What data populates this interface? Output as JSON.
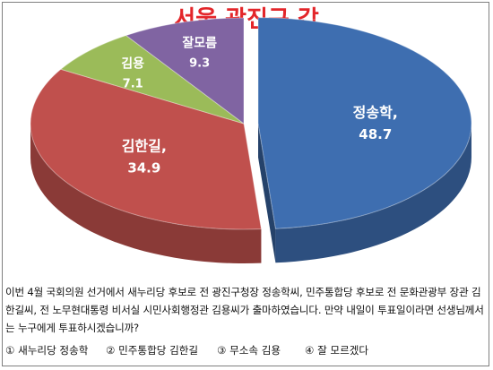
{
  "colors": {
    "title": "#e3262a",
    "slices": [
      "#3e6eb0",
      "#c0504d",
      "#9bbb59",
      "#8064a2"
    ],
    "label_text": "#ffffff"
  },
  "chart_data": {
    "type": "pie",
    "title": "서울 광진구 갑",
    "unit": "%",
    "three_d": true,
    "exploded_slice": "정송학",
    "series": [
      {
        "name": "정송학",
        "value": 48.7,
        "label": "정송학,",
        "value_label": "48.7"
      },
      {
        "name": "김한길",
        "value": 34.9,
        "label": "김한길,",
        "value_label": "34.9"
      },
      {
        "name": "김용",
        "value": 7.1,
        "label": "김용",
        "value_label": "7.1"
      },
      {
        "name": "잘모름",
        "value": 9.3,
        "label": "잘모름",
        "value_label": "9.3"
      }
    ]
  },
  "question": {
    "text": "이번 4월 국회의원 선거에서 새누리당 후보로 전 광진구청장 정송학씨, 민주통합당 후보로 전 문화관광부 장관 김한길씨, 전 노무현대통령 비서실 시민사회행정관 김용씨가 출마하였습니다. 만약 내일이 투표일이라면 선생님께서는 누구에게 투표하시겠습니까?"
  },
  "options": [
    "① 새누리당 정송학",
    "② 민주통합당 김한길",
    "③ 무소속 김용",
    "④ 잘 모르겠다"
  ]
}
